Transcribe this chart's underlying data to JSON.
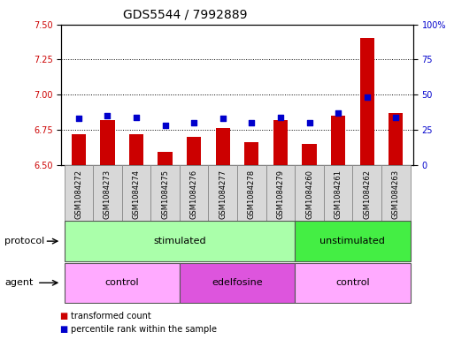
{
  "title": "GDS5544 / 7992889",
  "samples": [
    "GSM1084272",
    "GSM1084273",
    "GSM1084274",
    "GSM1084275",
    "GSM1084276",
    "GSM1084277",
    "GSM1084278",
    "GSM1084279",
    "GSM1084260",
    "GSM1084261",
    "GSM1084262",
    "GSM1084263"
  ],
  "bar_values": [
    6.72,
    6.82,
    6.72,
    6.59,
    6.7,
    6.76,
    6.66,
    6.82,
    6.65,
    6.85,
    7.4,
    6.87
  ],
  "dot_values": [
    33,
    35,
    34,
    28,
    30,
    33,
    30,
    34,
    30,
    37,
    48,
    34
  ],
  "ylim_left": [
    6.5,
    7.5
  ],
  "ylim_right": [
    0,
    100
  ],
  "yticks_left": [
    6.5,
    6.75,
    7.0,
    7.25,
    7.5
  ],
  "yticks_right": [
    0,
    25,
    50,
    75,
    100
  ],
  "bar_color": "#cc0000",
  "dot_color": "#0000cc",
  "bar_bottom": 6.5,
  "protocol_groups": [
    {
      "label": "stimulated",
      "start": 0,
      "end": 7,
      "color": "#aaffaa"
    },
    {
      "label": "unstimulated",
      "start": 8,
      "end": 11,
      "color": "#44ee44"
    }
  ],
  "agent_groups": [
    {
      "label": "control",
      "start": 0,
      "end": 3,
      "color": "#ffaaff"
    },
    {
      "label": "edelfosine",
      "start": 4,
      "end": 7,
      "color": "#dd55dd"
    },
    {
      "label": "control",
      "start": 8,
      "end": 11,
      "color": "#ffaaff"
    }
  ],
  "legend_items": [
    {
      "label": "transformed count",
      "color": "#cc0000"
    },
    {
      "label": "percentile rank within the sample",
      "color": "#0000cc"
    }
  ],
  "background_color": "#ffffff",
  "title_fontsize": 10,
  "tick_fontsize": 7,
  "label_fontsize": 8,
  "bar_width": 0.5,
  "sample_box_color": "#d8d8d8",
  "sample_text_fontsize": 6
}
